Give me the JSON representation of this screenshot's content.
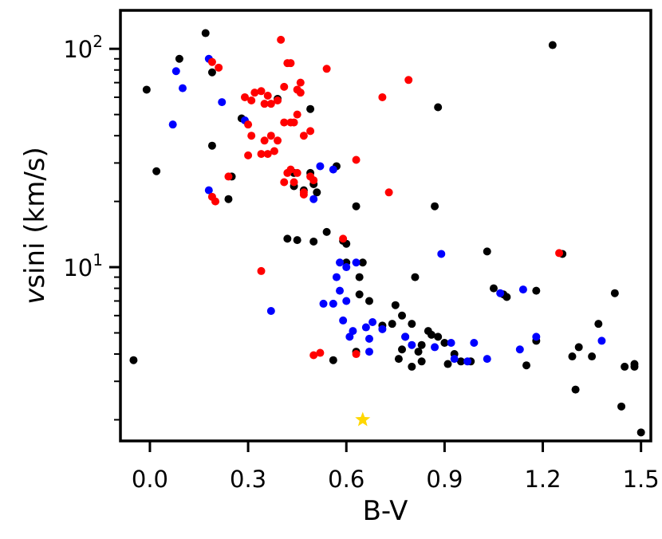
{
  "chart_data": {
    "type": "scatter",
    "xlabel": "B-V",
    "ylabel_prefix": "v",
    "ylabel_italic": "sini",
    "ylabel_suffix": " (km/s)",
    "ylabel": "vsini (km/s)",
    "xlim": [
      -0.09,
      1.53
    ],
    "ylim": [
      1.6,
      150
    ],
    "y_scale": "log",
    "grid": false,
    "x_ticks": [
      {
        "value": 0.0,
        "label": "0.0"
      },
      {
        "value": 0.3,
        "label": "0.3"
      },
      {
        "value": 0.6,
        "label": "0.6"
      },
      {
        "value": 0.9,
        "label": "0.9"
      },
      {
        "value": 1.2,
        "label": "1.2"
      },
      {
        "value": 1.5,
        "label": "1.5"
      }
    ],
    "y_ticks": [
      {
        "value": 10,
        "base": "10",
        "exp": "1"
      },
      {
        "value": 100,
        "base": "10",
        "exp": "2"
      }
    ],
    "series": [
      {
        "color": "#000000",
        "marker": "circle",
        "points": [
          [
            0.17,
            118
          ],
          [
            0.09,
            90
          ],
          [
            -0.01,
            65
          ],
          [
            0.19,
            78
          ],
          [
            0.02,
            27.5
          ],
          [
            0.28,
            48
          ],
          [
            0.19,
            36
          ],
          [
            0.25,
            26
          ],
          [
            0.24,
            20.5
          ],
          [
            0.39,
            59
          ],
          [
            0.49,
            53
          ],
          [
            0.44,
            27
          ],
          [
            0.44,
            23.5
          ],
          [
            0.47,
            22.5
          ],
          [
            0.5,
            24
          ],
          [
            0.51,
            22
          ],
          [
            0.49,
            27
          ],
          [
            0.57,
            29
          ],
          [
            0.54,
            14.5
          ],
          [
            0.42,
            13.5
          ],
          [
            0.45,
            13.3
          ],
          [
            0.5,
            13.1
          ],
          [
            0.59,
            13.2
          ],
          [
            0.63,
            19
          ],
          [
            0.6,
            12.8
          ],
          [
            0.6,
            10.5
          ],
          [
            0.65,
            10.5
          ],
          [
            0.64,
            9
          ],
          [
            0.64,
            7.5
          ],
          [
            0.67,
            7
          ],
          [
            0.71,
            5.4
          ],
          [
            0.75,
            6.7
          ],
          [
            0.77,
            6
          ],
          [
            0.74,
            5.5
          ],
          [
            0.8,
            5.5
          ],
          [
            0.88,
            54
          ],
          [
            0.87,
            19
          ],
          [
            0.81,
            9
          ],
          [
            0.78,
            4.8
          ],
          [
            0.77,
            4.2
          ],
          [
            0.83,
            4.4
          ],
          [
            0.86,
            4.9
          ],
          [
            0.88,
            4.8
          ],
          [
            0.82,
            4.1
          ],
          [
            0.85,
            5.1
          ],
          [
            0.9,
            4.5
          ],
          [
            0.91,
            3.6
          ],
          [
            0.93,
            4
          ],
          [
            0.98,
            3.7
          ],
          [
            0.95,
            3.7
          ],
          [
            0.76,
            3.8
          ],
          [
            0.8,
            3.5
          ],
          [
            0.83,
            3.7
          ],
          [
            0.56,
            3.75
          ],
          [
            0.63,
            4.1
          ],
          [
            1.03,
            11.8
          ],
          [
            1.05,
            8
          ],
          [
            1.09,
            7.3
          ],
          [
            1.08,
            7.5
          ],
          [
            1.15,
            3.55
          ],
          [
            1.18,
            7.8
          ],
          [
            1.18,
            4.6
          ],
          [
            1.23,
            104
          ],
          [
            1.26,
            11.5
          ],
          [
            1.29,
            3.9
          ],
          [
            1.31,
            4.3
          ],
          [
            1.3,
            2.75
          ],
          [
            1.35,
            3.9
          ],
          [
            1.37,
            5.5
          ],
          [
            1.42,
            7.6
          ],
          [
            1.44,
            2.3
          ],
          [
            1.45,
            3.5
          ],
          [
            1.48,
            3.6
          ],
          [
            1.48,
            3.5
          ],
          [
            1.5,
            1.75
          ],
          [
            -0.05,
            3.75
          ]
        ]
      },
      {
        "color": "#0000ff",
        "marker": "circle",
        "points": [
          [
            0.18,
            90
          ],
          [
            0.08,
            79
          ],
          [
            0.1,
            66
          ],
          [
            0.07,
            45
          ],
          [
            0.22,
            57
          ],
          [
            0.29,
            47
          ],
          [
            0.18,
            22.5
          ],
          [
            0.52,
            29
          ],
          [
            0.56,
            28
          ],
          [
            0.5,
            20.5
          ],
          [
            0.58,
            10.5
          ],
          [
            0.63,
            10.5
          ],
          [
            0.6,
            10
          ],
          [
            0.57,
            9
          ],
          [
            0.58,
            7.8
          ],
          [
            0.6,
            7
          ],
          [
            0.53,
            6.8
          ],
          [
            0.37,
            6.3
          ],
          [
            0.56,
            6.8
          ],
          [
            0.59,
            5.7
          ],
          [
            0.62,
            5.1
          ],
          [
            0.61,
            4.8
          ],
          [
            0.66,
            5.3
          ],
          [
            0.68,
            5.6
          ],
          [
            0.71,
            5.2
          ],
          [
            0.67,
            4.7
          ],
          [
            0.67,
            4.1
          ],
          [
            0.78,
            4.8
          ],
          [
            0.8,
            4.4
          ],
          [
            0.87,
            4.3
          ],
          [
            0.89,
            11.5
          ],
          [
            0.92,
            4.5
          ],
          [
            0.93,
            3.8
          ],
          [
            0.97,
            3.7
          ],
          [
            0.99,
            4.5
          ],
          [
            1.03,
            3.8
          ],
          [
            1.07,
            7.6
          ],
          [
            1.13,
            4.2
          ],
          [
            1.14,
            7.9
          ],
          [
            1.18,
            4.8
          ],
          [
            1.38,
            4.6
          ]
        ]
      },
      {
        "color": "#ff0000",
        "marker": "circle",
        "points": [
          [
            0.19,
            87
          ],
          [
            0.21,
            82
          ],
          [
            0.29,
            60
          ],
          [
            0.31,
            58
          ],
          [
            0.32,
            63
          ],
          [
            0.34,
            64
          ],
          [
            0.36,
            61
          ],
          [
            0.35,
            56
          ],
          [
            0.37,
            56
          ],
          [
            0.39,
            58
          ],
          [
            0.4,
            110
          ],
          [
            0.41,
            67
          ],
          [
            0.42,
            86
          ],
          [
            0.43,
            86
          ],
          [
            0.45,
            65
          ],
          [
            0.46,
            70
          ],
          [
            0.46,
            63
          ],
          [
            0.45,
            50
          ],
          [
            0.41,
            46
          ],
          [
            0.43,
            46
          ],
          [
            0.44,
            46
          ],
          [
            0.3,
            45
          ],
          [
            0.31,
            40
          ],
          [
            0.35,
            38
          ],
          [
            0.37,
            40
          ],
          [
            0.39,
            38
          ],
          [
            0.3,
            32.5
          ],
          [
            0.34,
            33
          ],
          [
            0.36,
            33
          ],
          [
            0.38,
            34
          ],
          [
            0.47,
            40
          ],
          [
            0.49,
            42
          ],
          [
            0.42,
            27
          ],
          [
            0.43,
            28
          ],
          [
            0.45,
            27
          ],
          [
            0.41,
            24.5
          ],
          [
            0.44,
            24.5
          ],
          [
            0.47,
            22
          ],
          [
            0.47,
            21.5
          ],
          [
            0.49,
            26
          ],
          [
            0.5,
            25
          ],
          [
            0.24,
            26
          ],
          [
            0.19,
            21
          ],
          [
            0.2,
            20
          ],
          [
            0.54,
            81
          ],
          [
            0.71,
            60
          ],
          [
            0.79,
            72
          ],
          [
            0.63,
            31
          ],
          [
            0.73,
            22
          ],
          [
            0.59,
            13.5
          ],
          [
            0.34,
            9.6
          ],
          [
            0.5,
            3.95
          ],
          [
            0.52,
            4.05
          ],
          [
            0.63,
            4.0
          ],
          [
            1.25,
            11.6
          ]
        ]
      },
      {
        "color": "#ffd700",
        "marker": "star",
        "points": [
          [
            0.65,
            2.0
          ]
        ]
      }
    ]
  }
}
